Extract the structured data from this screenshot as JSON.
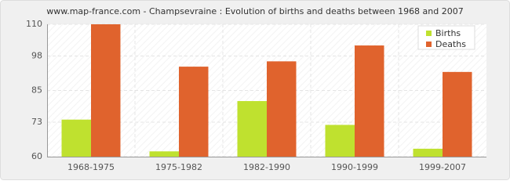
{
  "chart_data": {
    "type": "bar",
    "title": "www.map-france.com - Champsevraine : Evolution of births and deaths between 1968 and 2007",
    "categories": [
      "1968-1975",
      "1975-1982",
      "1982-1990",
      "1990-1999",
      "1999-2007"
    ],
    "series": [
      {
        "name": "Births",
        "color": "#bfe12f",
        "values": [
          74,
          62,
          81,
          72,
          63
        ]
      },
      {
        "name": "Deaths",
        "color": "#e0632d",
        "values": [
          110,
          94,
          96,
          102,
          92
        ]
      }
    ],
    "ylim": [
      60,
      110
    ],
    "yticks": [
      60,
      73,
      85,
      98,
      110
    ],
    "grid": true,
    "legend": "top-right"
  }
}
